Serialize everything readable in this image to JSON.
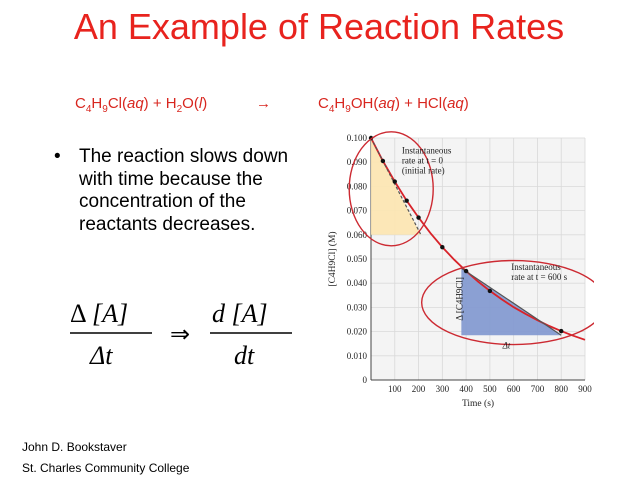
{
  "title": "An Example of Reaction Rates",
  "equation": {
    "reactant1": "C",
    "r1_sub1": "4",
    "r1_mid": "H",
    "r1_sub2": "9",
    "r1_end": "Cl(",
    "aq": "aq",
    "close_plus": ") + H",
    "water_sub": "2",
    "water_end": "O(",
    "l": "l",
    "close": ")",
    "arrow": "→",
    "product1": "C",
    "p1_sub1": "4",
    "p1_mid": "H",
    "p1_sub2": "9",
    "p1_end": "OH(",
    "p1_close": ") + HCl(",
    "p2_close": ")"
  },
  "bullet": "The reaction slows down with time because the concentration of the reactants decreases.",
  "formula": {
    "delta": "Δ",
    "A": "[A]",
    "dt_delta": "Δt",
    "implies": "⇒",
    "dA": "d [A]",
    "dt": "dt"
  },
  "footer": {
    "author": "John D. Bookstaver",
    "college": "St. Charles Community College"
  },
  "chart_data": {
    "type": "line",
    "xlabel": "Time (s)",
    "ylabel": "[C4H9Cl] (M)",
    "xlim": [
      0,
      900
    ],
    "ylim": [
      0,
      0.1
    ],
    "xticks": [
      "100",
      "200",
      "300",
      "400",
      "500",
      "600",
      "700",
      "800",
      "900"
    ],
    "yticks": [
      "0",
      "0.010",
      "0.020",
      "0.030",
      "0.040",
      "0.050",
      "0.060",
      "0.070",
      "0.080",
      "0.090",
      "0.100"
    ],
    "grid": true,
    "curve": [
      [
        0,
        0.1
      ],
      [
        50,
        0.0905
      ],
      [
        100,
        0.082
      ],
      [
        150,
        0.0741
      ],
      [
        200,
        0.0671
      ],
      [
        250,
        0.0607
      ],
      [
        300,
        0.0549
      ],
      [
        350,
        0.0497
      ],
      [
        400,
        0.045
      ],
      [
        450,
        0.0407
      ],
      [
        500,
        0.0368
      ],
      [
        550,
        0.0333
      ],
      [
        600,
        0.0301
      ],
      [
        650,
        0.0273
      ],
      [
        700,
        0.0247
      ],
      [
        750,
        0.0223
      ],
      [
        800,
        0.0202
      ],
      [
        850,
        0.0183
      ],
      [
        900,
        0.0166
      ]
    ],
    "points_x": [
      0,
      50,
      100,
      150,
      200,
      300,
      400,
      500,
      800
    ],
    "points_y": [
      0.1,
      0.0905,
      0.082,
      0.0741,
      0.0671,
      0.0549,
      0.045,
      0.0368,
      0.0202
    ],
    "tangent_initial": [
      [
        0,
        0.1
      ],
      [
        210,
        0.06
      ]
    ],
    "tangent_600": [
      [
        380,
        0.0462
      ],
      [
        800,
        0.0185
      ]
    ],
    "annotations": {
      "initial_rate": [
        "Instantaneous",
        "rate at t = 0",
        "(initial rate)"
      ],
      "rate_600": [
        "Instantaneous",
        "rate at t = 600 s"
      ],
      "delta_t": "Δt",
      "delta_conc": "Δ [C4H9Cl]"
    },
    "colors": {
      "curve": "#d8232a",
      "tangent": "#555555",
      "triangle_initial": "#fde5b0",
      "triangle_600": "#7f97cf",
      "highlight_circle": "#cc2a32",
      "grid": "#d9d9d9",
      "plot_bg": "#f4f4f4"
    }
  }
}
